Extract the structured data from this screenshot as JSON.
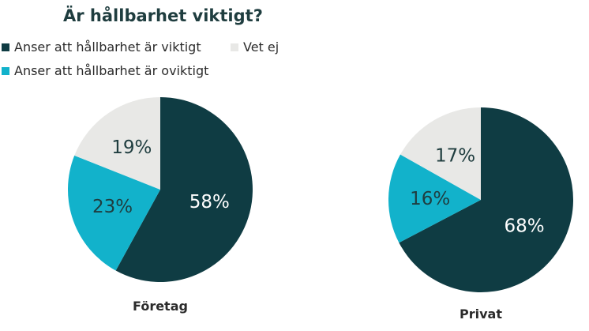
{
  "chart_data": {
    "type": "pie",
    "title": "Är hållbarhet viktigt?",
    "legend_position": "top-left",
    "legend": [
      {
        "label": "Anser att hållbarhet är viktigt",
        "color": "#0f3c43"
      },
      {
        "label": "Vet ej",
        "color": "#e8e8e6"
      },
      {
        "label": "Anser att hållbarhet är oviktigt",
        "color": "#12b2cb"
      }
    ],
    "categories": [
      "Anser att hållbarhet är viktigt",
      "Anser att hållbarhet är oviktigt",
      "Vet ej"
    ],
    "colors": [
      "#0f3c43",
      "#12b2cb",
      "#e8e8e6"
    ],
    "label_colors": [
      "#ffffff",
      "#1f3d3f",
      "#1f3d3f"
    ],
    "charts": [
      {
        "name": "Företag",
        "values": [
          58,
          23,
          19
        ],
        "labels": [
          "58%",
          "23%",
          "19%"
        ]
      },
      {
        "name": "Privat",
        "values": [
          68,
          16,
          17
        ],
        "labels": [
          "68%",
          "16%",
          "17%"
        ]
      }
    ]
  }
}
